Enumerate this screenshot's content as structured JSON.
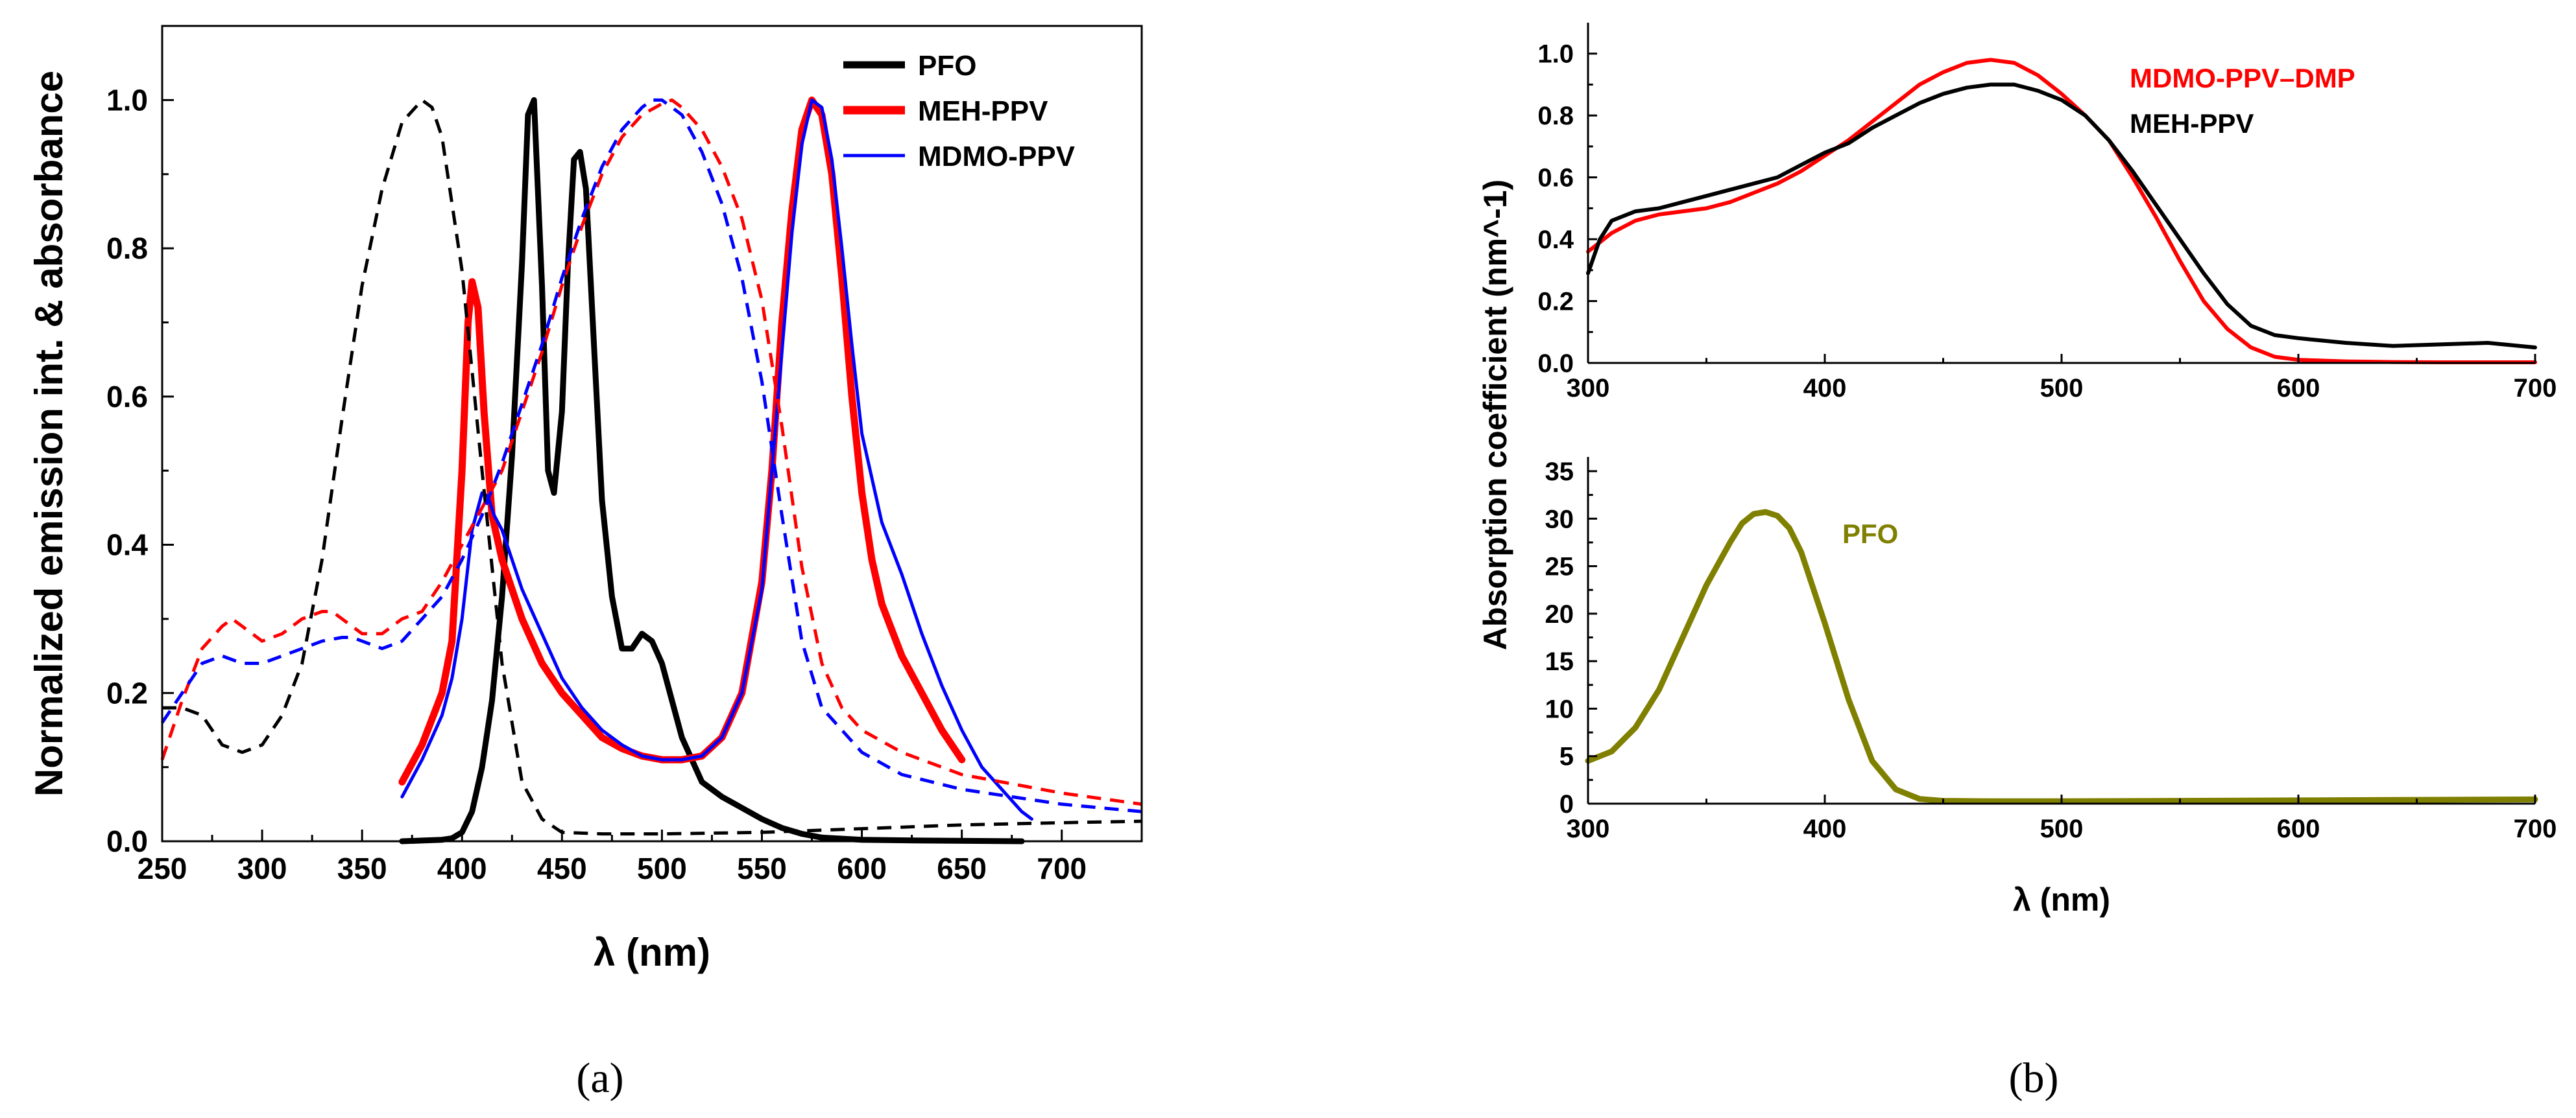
{
  "chart_data": [
    {
      "panel": "(a)",
      "type": "line",
      "xlabel": "λ (nm)",
      "ylabel": "Normalized emission int. & absorbance",
      "xlim": [
        250,
        740
      ],
      "ylim": [
        0,
        1.1
      ],
      "xticks": [
        250,
        300,
        350,
        400,
        450,
        500,
        550,
        600,
        650,
        700
      ],
      "yticks": [
        0.0,
        0.2,
        0.4,
        0.6,
        0.8,
        1.0
      ],
      "xtick_labels": [
        "250",
        "300",
        "350",
        "400",
        "450",
        "500",
        "550",
        "600",
        "650",
        "700"
      ],
      "ytick_labels": [
        "0.0",
        "0.2",
        "0.4",
        "0.6",
        "0.8",
        "1.0"
      ],
      "legend_position": "top-right",
      "legend": [
        "PFO",
        "MEH-PPV",
        "MDMO-PPV"
      ],
      "series": [
        {
          "name": "PFO",
          "style": "solid",
          "color": "#000000",
          "width": 9,
          "x": [
            370,
            380,
            390,
            395,
            400,
            405,
            410,
            415,
            420,
            425,
            430,
            433,
            436,
            440,
            443,
            446,
            450,
            453,
            456,
            459,
            462,
            466,
            470,
            475,
            480,
            485,
            490,
            495,
            500,
            505,
            510,
            520,
            530,
            540,
            550,
            560,
            570,
            580,
            600,
            630,
            680
          ],
          "y": [
            0.0,
            0.001,
            0.002,
            0.004,
            0.012,
            0.04,
            0.1,
            0.19,
            0.33,
            0.52,
            0.78,
            0.98,
            1.0,
            0.75,
            0.5,
            0.47,
            0.58,
            0.78,
            0.92,
            0.93,
            0.88,
            0.67,
            0.46,
            0.33,
            0.26,
            0.26,
            0.28,
            0.27,
            0.24,
            0.19,
            0.14,
            0.08,
            0.06,
            0.045,
            0.03,
            0.018,
            0.01,
            0.005,
            0.002,
            0.001,
            0.0
          ]
        },
        {
          "name": "MEH-PPV",
          "style": "solid",
          "color": "#ff0000",
          "width": 11,
          "x": [
            370,
            380,
            390,
            395,
            400,
            403,
            405,
            408,
            411,
            415,
            420,
            425,
            430,
            440,
            450,
            460,
            470,
            480,
            490,
            500,
            510,
            520,
            530,
            540,
            550,
            555,
            560,
            565,
            570,
            575,
            580,
            585,
            590,
            595,
            600,
            605,
            610,
            620,
            630,
            640,
            650
          ],
          "y": [
            0.08,
            0.13,
            0.2,
            0.27,
            0.5,
            0.7,
            0.755,
            0.72,
            0.58,
            0.44,
            0.38,
            0.34,
            0.3,
            0.24,
            0.2,
            0.17,
            0.14,
            0.125,
            0.115,
            0.11,
            0.11,
            0.115,
            0.14,
            0.2,
            0.35,
            0.5,
            0.7,
            0.85,
            0.96,
            1.0,
            0.98,
            0.9,
            0.76,
            0.6,
            0.47,
            0.38,
            0.32,
            0.25,
            0.2,
            0.15,
            0.11
          ]
        },
        {
          "name": "MDMO-PPV",
          "style": "solid",
          "color": "#0000ff",
          "width": 5,
          "x": [
            370,
            380,
            390,
            395,
            400,
            405,
            410,
            413,
            416,
            420,
            425,
            430,
            440,
            450,
            460,
            470,
            480,
            490,
            500,
            510,
            520,
            530,
            540,
            550,
            560,
            565,
            570,
            575,
            580,
            585,
            590,
            595,
            600,
            610,
            620,
            630,
            640,
            650,
            660,
            670,
            680,
            685
          ],
          "y": [
            0.06,
            0.11,
            0.17,
            0.22,
            0.3,
            0.42,
            0.47,
            0.465,
            0.44,
            0.42,
            0.38,
            0.34,
            0.28,
            0.22,
            0.18,
            0.15,
            0.13,
            0.115,
            0.11,
            0.11,
            0.115,
            0.14,
            0.2,
            0.34,
            0.66,
            0.82,
            0.94,
            1.0,
            0.99,
            0.92,
            0.8,
            0.67,
            0.55,
            0.43,
            0.36,
            0.28,
            0.21,
            0.15,
            0.1,
            0.07,
            0.04,
            0.03
          ]
        },
        {
          "name": "PFO absorbance",
          "style": "dashed",
          "color": "#000000",
          "width": 5,
          "x": [
            250,
            260,
            270,
            280,
            290,
            300,
            310,
            320,
            330,
            340,
            350,
            360,
            370,
            380,
            385,
            390,
            400,
            410,
            420,
            430,
            440,
            450,
            470,
            500,
            550,
            600,
            650,
            700,
            740
          ],
          "y": [
            0.18,
            0.18,
            0.17,
            0.13,
            0.12,
            0.13,
            0.17,
            0.24,
            0.38,
            0.57,
            0.75,
            0.88,
            0.97,
            1.0,
            0.99,
            0.95,
            0.77,
            0.5,
            0.24,
            0.08,
            0.03,
            0.012,
            0.01,
            0.01,
            0.012,
            0.017,
            0.022,
            0.025,
            0.027
          ]
        },
        {
          "name": "MEH-PPV absorbance",
          "style": "dashed",
          "color": "#ff0000",
          "width": 5,
          "x": [
            250,
            260,
            270,
            280,
            285,
            290,
            300,
            310,
            320,
            330,
            335,
            340,
            350,
            360,
            370,
            380,
            390,
            400,
            410,
            420,
            430,
            440,
            450,
            460,
            470,
            480,
            490,
            500,
            505,
            510,
            520,
            530,
            540,
            550,
            560,
            570,
            580,
            590,
            600,
            620,
            650,
            700,
            740
          ],
          "y": [
            0.11,
            0.19,
            0.26,
            0.29,
            0.3,
            0.29,
            0.27,
            0.28,
            0.3,
            0.31,
            0.31,
            0.3,
            0.28,
            0.28,
            0.3,
            0.31,
            0.35,
            0.4,
            0.45,
            0.5,
            0.58,
            0.66,
            0.75,
            0.83,
            0.9,
            0.95,
            0.98,
            0.995,
            1.0,
            0.99,
            0.96,
            0.91,
            0.84,
            0.73,
            0.56,
            0.37,
            0.24,
            0.18,
            0.15,
            0.12,
            0.09,
            0.065,
            0.05
          ]
        },
        {
          "name": "MDMO-PPV absorbance",
          "style": "dashed",
          "color": "#0000ff",
          "width": 5,
          "x": [
            250,
            260,
            270,
            280,
            290,
            300,
            310,
            320,
            330,
            340,
            345,
            350,
            360,
            370,
            380,
            390,
            400,
            410,
            420,
            430,
            440,
            450,
            460,
            470,
            480,
            490,
            495,
            500,
            510,
            520,
            530,
            540,
            550,
            560,
            570,
            580,
            600,
            620,
            650,
            700,
            740
          ],
          "y": [
            0.16,
            0.2,
            0.24,
            0.25,
            0.24,
            0.24,
            0.25,
            0.26,
            0.27,
            0.275,
            0.275,
            0.27,
            0.26,
            0.27,
            0.3,
            0.33,
            0.38,
            0.44,
            0.51,
            0.59,
            0.67,
            0.76,
            0.84,
            0.91,
            0.96,
            0.99,
            1.0,
            1.0,
            0.98,
            0.93,
            0.86,
            0.76,
            0.62,
            0.44,
            0.27,
            0.18,
            0.12,
            0.09,
            0.07,
            0.05,
            0.04
          ]
        }
      ]
    },
    {
      "panel": "(b)",
      "type": "line",
      "xlabel": "",
      "ylabel": "",
      "xlim": [
        300,
        700
      ],
      "ylim": [
        0,
        1.1
      ],
      "xticks": [
        300,
        400,
        500,
        600,
        700
      ],
      "yticks": [
        0.0,
        0.2,
        0.4,
        0.6,
        0.8,
        1.0
      ],
      "xtick_labels": [
        "300",
        "400",
        "500",
        "600",
        "700"
      ],
      "ytick_labels": [
        "0.0",
        "0.2",
        "0.4",
        "0.6",
        "0.8",
        "1.0"
      ],
      "labels": [
        "MDMO-PPV–DMP",
        "MEH-PPV"
      ],
      "series": [
        {
          "name": "MDMO-PPV–DMP",
          "color": "#ff0000",
          "width": 6,
          "x": [
            300,
            310,
            320,
            330,
            340,
            350,
            360,
            370,
            380,
            390,
            400,
            410,
            420,
            430,
            440,
            450,
            460,
            470,
            480,
            490,
            500,
            510,
            520,
            530,
            540,
            550,
            560,
            570,
            580,
            590,
            600,
            620,
            640,
            660,
            680,
            700
          ],
          "y": [
            0.36,
            0.42,
            0.46,
            0.48,
            0.49,
            0.5,
            0.52,
            0.55,
            0.58,
            0.62,
            0.67,
            0.72,
            0.78,
            0.84,
            0.9,
            0.94,
            0.97,
            0.98,
            0.97,
            0.93,
            0.87,
            0.8,
            0.72,
            0.6,
            0.47,
            0.33,
            0.2,
            0.11,
            0.05,
            0.02,
            0.01,
            0.005,
            0.003,
            0.002,
            0.002,
            0.002
          ]
        },
        {
          "name": "MEH-PPV",
          "color": "#000000",
          "width": 6,
          "x": [
            300,
            305,
            310,
            320,
            330,
            340,
            350,
            360,
            370,
            380,
            390,
            400,
            410,
            420,
            430,
            440,
            450,
            460,
            470,
            480,
            490,
            500,
            510,
            520,
            530,
            540,
            550,
            560,
            570,
            580,
            590,
            600,
            620,
            640,
            660,
            680,
            700
          ],
          "y": [
            0.29,
            0.4,
            0.46,
            0.49,
            0.5,
            0.52,
            0.54,
            0.56,
            0.58,
            0.6,
            0.64,
            0.68,
            0.71,
            0.76,
            0.8,
            0.84,
            0.87,
            0.89,
            0.9,
            0.9,
            0.88,
            0.85,
            0.8,
            0.72,
            0.62,
            0.51,
            0.4,
            0.29,
            0.19,
            0.12,
            0.09,
            0.08,
            0.065,
            0.055,
            0.06,
            0.065,
            0.05
          ]
        }
      ]
    },
    {
      "panel": "(b)",
      "type": "line",
      "xlabel": "λ (nm)",
      "ylabel": "",
      "shared_ylabel": "Absorption coefficient (nm^-1)",
      "xlim": [
        300,
        700
      ],
      "ylim": [
        0,
        35
      ],
      "xticks": [
        300,
        400,
        500,
        600,
        700
      ],
      "yticks": [
        0,
        5,
        10,
        15,
        20,
        25,
        30,
        35
      ],
      "xtick_labels": [
        "300",
        "400",
        "500",
        "600",
        "700"
      ],
      "ytick_labels": [
        "0",
        "5",
        "10",
        "15",
        "20",
        "25",
        "30",
        "35"
      ],
      "labels": [
        "PFO"
      ],
      "series": [
        {
          "name": "PFO",
          "color": "#808000",
          "width": 9,
          "x": [
            300,
            310,
            320,
            330,
            340,
            350,
            360,
            365,
            370,
            375,
            380,
            385,
            390,
            400,
            410,
            420,
            430,
            440,
            450,
            470,
            500,
            550,
            600,
            650,
            700
          ],
          "y": [
            4.5,
            5.5,
            8,
            12,
            17.5,
            23,
            27.5,
            29.5,
            30.5,
            30.7,
            30.3,
            29,
            26.5,
            19,
            11,
            4.5,
            1.5,
            0.5,
            0.3,
            0.25,
            0.25,
            0.3,
            0.35,
            0.4,
            0.45
          ]
        }
      ]
    }
  ],
  "panel_a_label": "(a)",
  "panel_b_label": "(b)"
}
